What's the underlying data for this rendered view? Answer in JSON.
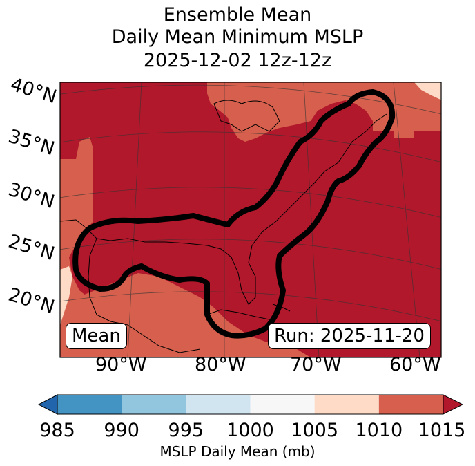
{
  "title": {
    "line1": "Ensemble Mean",
    "line2": "Daily Mean Minimum MSLP",
    "line3": "2025-12-02 12z-12z"
  },
  "latitude_labels": [
    "40°N",
    "35°N",
    "30°N",
    "25°N",
    "20°N"
  ],
  "longitude_labels": [
    "90°W",
    "80°W",
    "70°W",
    "60°W"
  ],
  "annotations": {
    "mean_box": "Mean",
    "run_box": "Run: 2025-11-20"
  },
  "colorbar": {
    "label": "MSLP Daily Mean (mb)",
    "ticks": [
      "985",
      "990",
      "995",
      "1000",
      "1005",
      "1010",
      "1015"
    ],
    "bins": [
      {
        "range": "<985",
        "color": "#2166ac"
      },
      {
        "range": "985-990",
        "color": "#4393c3"
      },
      {
        "range": "990-995",
        "color": "#92c5de"
      },
      {
        "range": "995-1000",
        "color": "#d1e5f0"
      },
      {
        "range": "1000-1005",
        "color": "#f7f7f7"
      },
      {
        "range": "1005-1010",
        "color": "#fddbc7"
      },
      {
        "range": "1010-1015",
        "color": "#d6604d"
      },
      {
        "range": ">1015",
        "color": "#b2182b"
      }
    ]
  },
  "map_colors": {
    "above_1015": "#b2182b",
    "band_1010_1015": "#d6604d",
    "band_1005_1010": "#fddbc7"
  }
}
